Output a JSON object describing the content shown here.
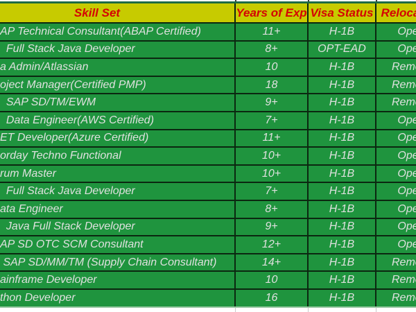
{
  "table": {
    "columns": [
      {
        "label": "Skill Set"
      },
      {
        "label": "Years of Exp"
      },
      {
        "label": "Visa Status"
      },
      {
        "label": "Relocation"
      }
    ],
    "rows": [
      {
        "skill": "AP Technical Consultant(ABAP Certified)",
        "exp": "11+",
        "visa": "H-1B",
        "reloc": "Open"
      },
      {
        "skill": "  Full Stack Java Developer",
        "exp": "8+",
        "visa": "OPT-EAD",
        "reloc": "Open"
      },
      {
        "skill": "a Admin/Atlassian",
        "exp": "10",
        "visa": "H-1B",
        "reloc": "Remote"
      },
      {
        "skill": "oject Manager(Certified PMP)",
        "exp": "18",
        "visa": "H-1B",
        "reloc": "Remote"
      },
      {
        "skill": "  SAP SD/TM/EWM",
        "exp": "9+",
        "visa": "H-1B",
        "reloc": "Remote"
      },
      {
        "skill": "  Data Engineer(AWS Certified)",
        "exp": "7+",
        "visa": "H-1B",
        "reloc": "Open"
      },
      {
        "skill": "ET Developer(Azure Certified)",
        "exp": "11+",
        "visa": "H-1B",
        "reloc": "Open"
      },
      {
        "skill": "orday Techno Functional",
        "exp": "10+",
        "visa": "H-1B",
        "reloc": "Open"
      },
      {
        "skill": "rum Master",
        "exp": "10+",
        "visa": "H-1B",
        "reloc": "Open"
      },
      {
        "skill": "  Full Stack Java Developer",
        "exp": "7+",
        "visa": "H-1B",
        "reloc": "Open"
      },
      {
        "skill": "ata Engineer",
        "exp": "8+",
        "visa": "H-1B",
        "reloc": "Open"
      },
      {
        "skill": "  Java Full Stack Developer",
        "exp": "9+",
        "visa": "H-1B",
        "reloc": "Open"
      },
      {
        "skill": "AP SD OTC SCM Consultant",
        "exp": "12+",
        "visa": "H-1B",
        "reloc": "Open"
      },
      {
        "skill": " SAP SD/MM/TM (Supply Chain Consultant)",
        "exp": "14+",
        "visa": "H-1B",
        "reloc": "Remote"
      },
      {
        "skill": "ainframe Developer",
        "exp": "10",
        "visa": "H-1B",
        "reloc": "Remote"
      },
      {
        "skill": "thon Developer",
        "exp": "16",
        "visa": "H-1B",
        "reloc": "Remote"
      }
    ]
  },
  "colors": {
    "header_bg": "#c7cb00",
    "header_text": "#d40404",
    "cell_bg": "#1f943e",
    "cell_text": "#dfe1df",
    "grid_line": "#0b2710",
    "table_top_line": "#1d6b45",
    "table_bottom_line": "#98c8a2"
  }
}
